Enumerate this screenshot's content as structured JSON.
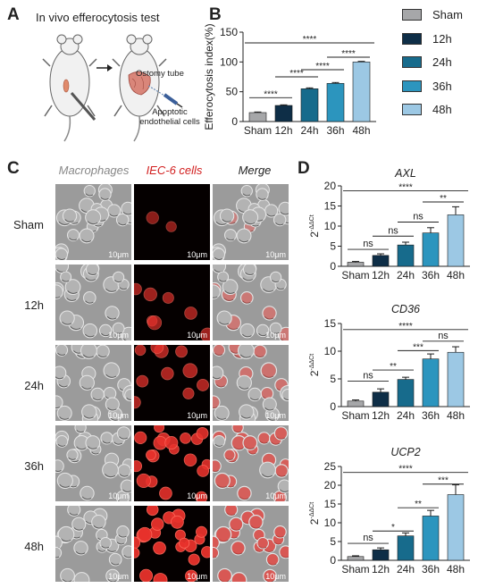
{
  "figure": {
    "panel_letters": [
      "A",
      "B",
      "C",
      "D"
    ],
    "panel_a": {
      "title": "In vivo efferocytosis test",
      "tube_label": "Ostomy tube",
      "cells_label_line1": "Apoptotic",
      "cells_label_line2": "endothelial cells"
    },
    "panel_c": {
      "columns": [
        "Macrophages",
        "IEC-6 cells",
        "Merge"
      ],
      "column_colors": [
        "#888888",
        "#d21f1f",
        "#222222"
      ],
      "rows": [
        "Sham",
        "12h",
        "24h",
        "36h",
        "48h"
      ],
      "scale_bar": "10μm",
      "red_intensity": [
        0.1,
        0.3,
        0.45,
        0.85,
        1.0
      ]
    }
  },
  "chart_data": [
    {
      "type": "bar",
      "panel": "B",
      "categories": [
        "Sham",
        "12h",
        "24h",
        "36h",
        "48h"
      ],
      "values": [
        15,
        27,
        55,
        64,
        100
      ],
      "errors": [
        1,
        1,
        1.5,
        1.5,
        1
      ],
      "ylabel": "Efferocytosis index(%)",
      "ylim": [
        0,
        150
      ],
      "yticks": [
        0,
        50,
        100,
        150
      ],
      "colors": [
        "#a6a7a9",
        "#0e2e47",
        "#176b8c",
        "#2c95be",
        "#9cc8e4"
      ],
      "legend": [
        "Sham",
        "12h",
        "24h",
        "36h",
        "48h"
      ],
      "significance": [
        {
          "from": 0,
          "to": 1,
          "label": "****",
          "y": 40
        },
        {
          "from": 1,
          "to": 2,
          "label": "****",
          "y": 75
        },
        {
          "from": 2,
          "to": 3,
          "label": "****",
          "y": 87
        },
        {
          "from": 3,
          "to": 4,
          "label": "****",
          "y": 108
        },
        {
          "from": 0,
          "to": 4,
          "label": "****",
          "y": 132
        }
      ]
    },
    {
      "type": "bar",
      "panel": "D",
      "title": "AXL",
      "categories": [
        "Sham",
        "12h",
        "24h",
        "36h",
        "48h"
      ],
      "values": [
        1,
        2.7,
        5.3,
        8.3,
        12.8
      ],
      "errors": [
        0.2,
        0.4,
        0.7,
        1.3,
        2.0
      ],
      "ylabel": "2^-ΔΔCt",
      "ylim": [
        0,
        20
      ],
      "yticks": [
        0,
        5,
        10,
        15,
        20
      ],
      "colors": [
        "#a6a7a9",
        "#0e2e47",
        "#176b8c",
        "#2c95be",
        "#9cc8e4"
      ],
      "significance": [
        {
          "from": 0,
          "to": 1,
          "label": "ns",
          "y": 4.2
        },
        {
          "from": 1,
          "to": 2,
          "label": "ns",
          "y": 7.5
        },
        {
          "from": 2,
          "to": 3,
          "label": "ns",
          "y": 11.0
        },
        {
          "from": 3,
          "to": 4,
          "label": "**",
          "y": 16.0
        },
        {
          "from": 0,
          "to": 4,
          "label": "****",
          "y": 18.8
        }
      ]
    },
    {
      "type": "bar",
      "panel": "D",
      "title": "CD36",
      "categories": [
        "Sham",
        "12h",
        "24h",
        "36h",
        "48h"
      ],
      "values": [
        1,
        2.6,
        4.9,
        8.6,
        9.8
      ],
      "errors": [
        0.2,
        0.6,
        0.4,
        0.9,
        1.0
      ],
      "ylabel": "2^-ΔΔCt",
      "ylim": [
        0,
        15
      ],
      "yticks": [
        0,
        5,
        10,
        15
      ],
      "colors": [
        "#a6a7a9",
        "#0e2e47",
        "#176b8c",
        "#2c95be",
        "#9cc8e4"
      ],
      "significance": [
        {
          "from": 0,
          "to": 1,
          "label": "ns",
          "y": 4.6
        },
        {
          "from": 1,
          "to": 2,
          "label": "**",
          "y": 6.6
        },
        {
          "from": 2,
          "to": 3,
          "label": "***",
          "y": 10.1
        },
        {
          "from": 3,
          "to": 4,
          "label": "ns",
          "y": 11.8
        },
        {
          "from": 0,
          "to": 4,
          "label": "****",
          "y": 13.9
        }
      ]
    },
    {
      "type": "bar",
      "panel": "D",
      "title": "UCP2",
      "categories": [
        "Sham",
        "12h",
        "24h",
        "36h",
        "48h"
      ],
      "values": [
        1,
        2.8,
        6.5,
        11.8,
        17.5
      ],
      "errors": [
        0.2,
        0.5,
        0.8,
        1.5,
        2.6
      ],
      "ylabel": "2^-ΔΔCt",
      "ylim": [
        0,
        25
      ],
      "yticks": [
        0,
        5,
        10,
        15,
        20,
        25
      ],
      "colors": [
        "#a6a7a9",
        "#0e2e47",
        "#176b8c",
        "#2c95be",
        "#9cc8e4"
      ],
      "significance": [
        {
          "from": 0,
          "to": 1,
          "label": "ns",
          "y": 4.5
        },
        {
          "from": 1,
          "to": 2,
          "label": "*",
          "y": 7.8
        },
        {
          "from": 2,
          "to": 3,
          "label": "**",
          "y": 14.0
        },
        {
          "from": 3,
          "to": 4,
          "label": "***",
          "y": 20.3
        },
        {
          "from": 0,
          "to": 4,
          "label": "****",
          "y": 23.4
        }
      ]
    }
  ]
}
